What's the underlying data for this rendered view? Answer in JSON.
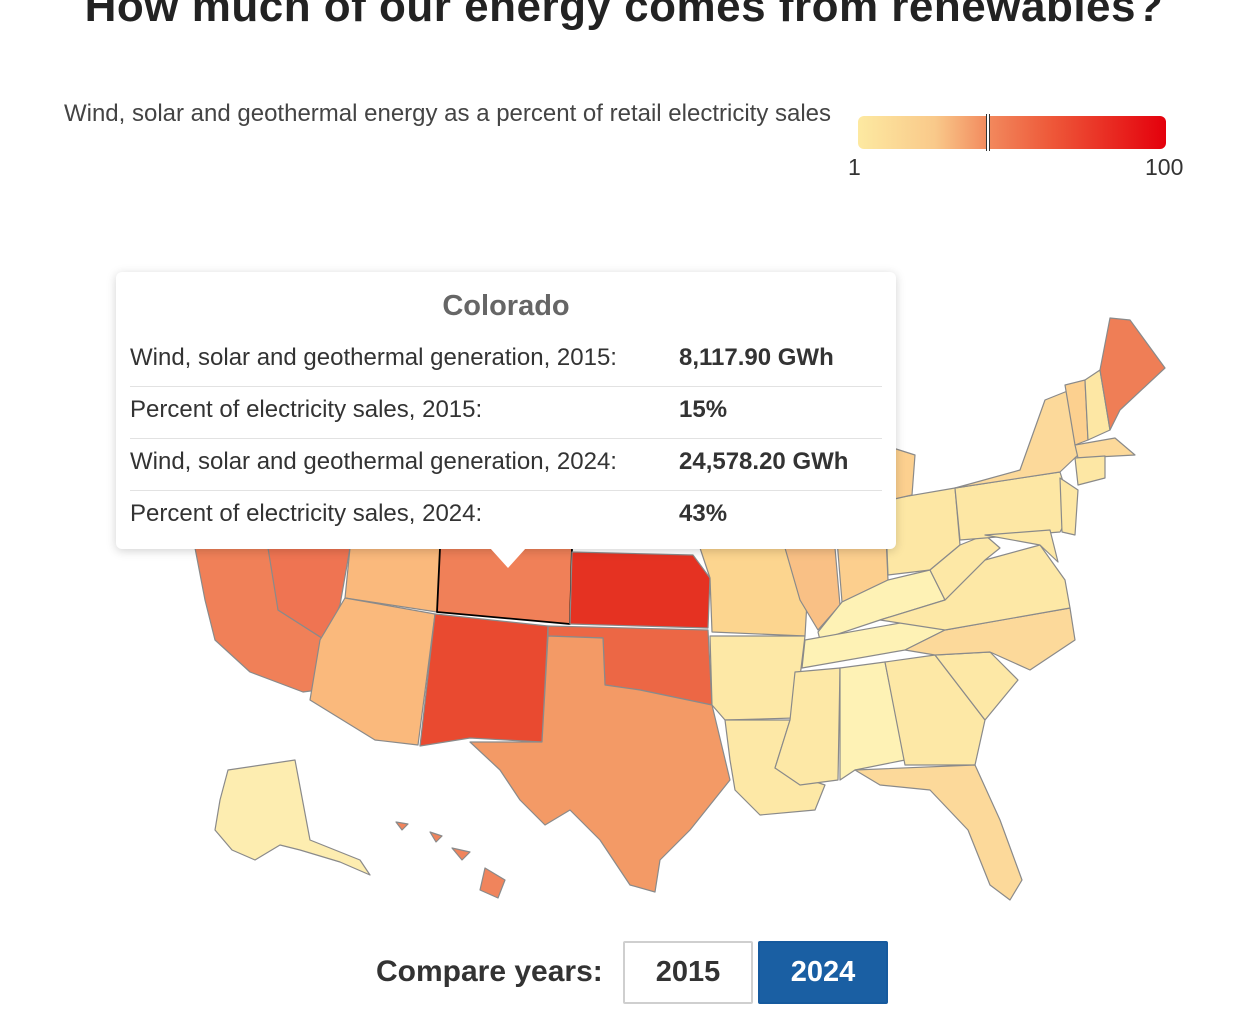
{
  "title": "How much of our energy comes from renewables?",
  "legend": {
    "caption": "Wind, solar and geothermal energy as a percent of retail electricity sales",
    "min_label": "1",
    "max_label": "100",
    "marker_value": 43,
    "color_low": "#fde9a1",
    "color_high": "#e4000c"
  },
  "tooltip": {
    "state": "Colorado",
    "rows": [
      {
        "label": "Wind, solar and geothermal generation, 2015:",
        "value": "8,117.90 GWh"
      },
      {
        "label": "Percent of electricity sales, 2015:",
        "value": "15%"
      },
      {
        "label": "Wind, solar and geothermal generation, 2024:",
        "value": "24,578.20 GWh"
      },
      {
        "label": "Percent of electricity sales, 2024:",
        "value": "43%"
      }
    ]
  },
  "controls": {
    "compare_label": "Compare years:",
    "years": [
      "2015",
      "2024"
    ],
    "selected_year": "2024",
    "selected_color": "#1a5fa3"
  }
}
